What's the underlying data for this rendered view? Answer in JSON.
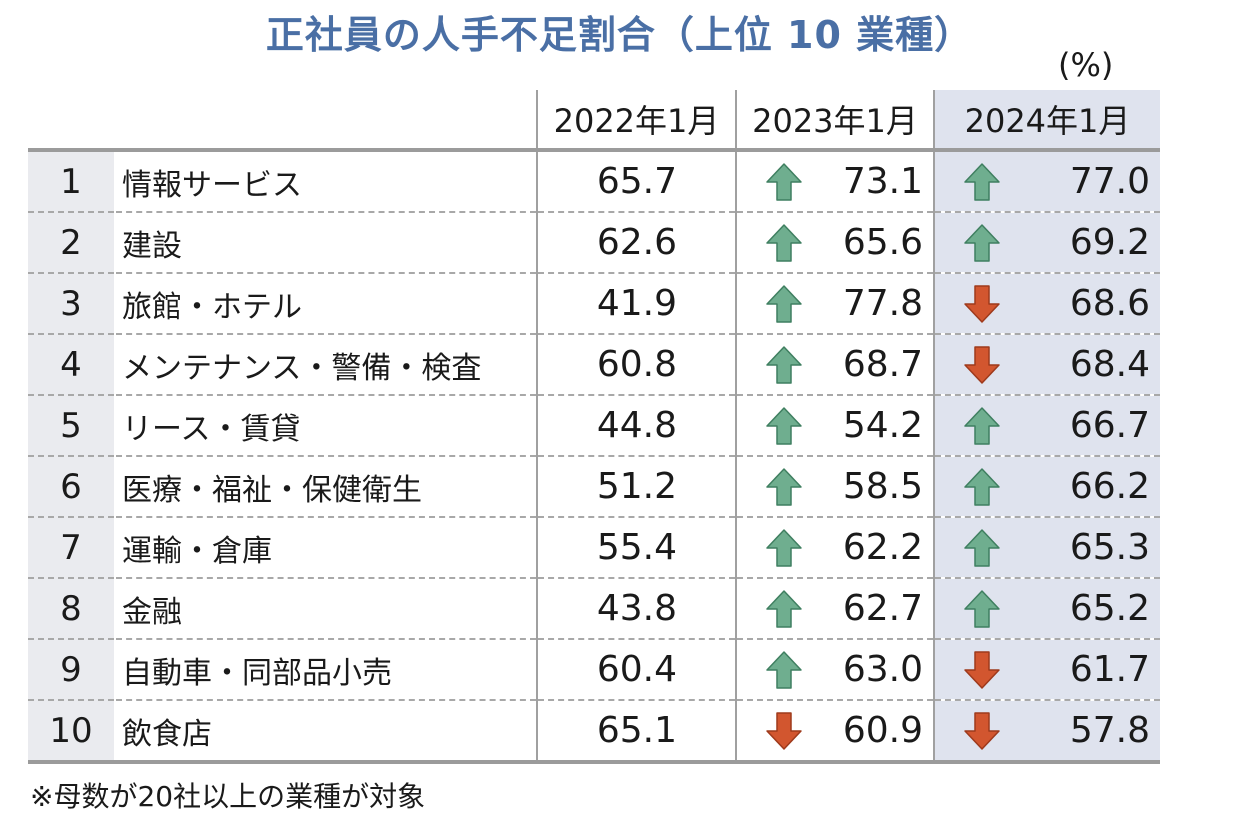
{
  "title": "正社員の人手不足割合（上位 10 業種）",
  "unit": "(%)",
  "note": "※母数が20社以上の業種が対象",
  "colors": {
    "title": "#4a6fa5",
    "up": "#6fae8f",
    "down": "#d2562f",
    "highlight": "#dfe3ee"
  },
  "chart_data": {
    "type": "table",
    "columns": [
      "2022年1月",
      "2023年1月",
      "2024年1月"
    ],
    "rows": [
      {
        "rank": "1",
        "industry": "情報サービス",
        "values": [
          "65.7",
          "73.1",
          "77.0"
        ],
        "trend": [
          "",
          "up",
          "up"
        ]
      },
      {
        "rank": "2",
        "industry": "建設",
        "values": [
          "62.6",
          "65.6",
          "69.2"
        ],
        "trend": [
          "",
          "up",
          "up"
        ]
      },
      {
        "rank": "3",
        "industry": "旅館・ホテル",
        "values": [
          "41.9",
          "77.8",
          "68.6"
        ],
        "trend": [
          "",
          "up",
          "down"
        ]
      },
      {
        "rank": "4",
        "industry": "メンテナンス・警備・検査",
        "values": [
          "60.8",
          "68.7",
          "68.4"
        ],
        "trend": [
          "",
          "up",
          "down"
        ]
      },
      {
        "rank": "5",
        "industry": "リース・賃貸",
        "values": [
          "44.8",
          "54.2",
          "66.7"
        ],
        "trend": [
          "",
          "up",
          "up"
        ]
      },
      {
        "rank": "6",
        "industry": "医療・福祉・保健衛生",
        "values": [
          "51.2",
          "58.5",
          "66.2"
        ],
        "trend": [
          "",
          "up",
          "up"
        ]
      },
      {
        "rank": "7",
        "industry": "運輸・倉庫",
        "values": [
          "55.4",
          "62.2",
          "65.3"
        ],
        "trend": [
          "",
          "up",
          "up"
        ]
      },
      {
        "rank": "8",
        "industry": "金融",
        "values": [
          "43.8",
          "62.7",
          "65.2"
        ],
        "trend": [
          "",
          "up",
          "up"
        ]
      },
      {
        "rank": "9",
        "industry": "自動車・同部品小売",
        "values": [
          "60.4",
          "63.0",
          "61.7"
        ],
        "trend": [
          "",
          "up",
          "down"
        ]
      },
      {
        "rank": "10",
        "industry": "飲食店",
        "values": [
          "65.1",
          "60.9",
          "57.8"
        ],
        "trend": [
          "",
          "down",
          "down"
        ]
      }
    ]
  }
}
